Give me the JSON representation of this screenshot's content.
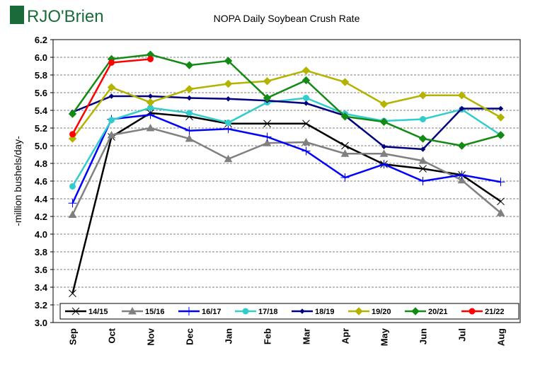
{
  "logo": "RJO'Brien",
  "chart_data": {
    "type": "line",
    "title": "NOPA Daily Soybean Crush Rate",
    "y_label": "-million bushels/day-",
    "categories": [
      "Sep",
      "Oct",
      "Nov",
      "Dec",
      "Jan",
      "Feb",
      "Mar",
      "Apr",
      "May",
      "Jun",
      "Jul",
      "Aug"
    ],
    "ylim": [
      3.0,
      6.2
    ],
    "yticks": [
      {
        "value": 3.0,
        "label": "3.0"
      },
      3.2,
      3.4,
      3.6,
      3.8,
      {
        "value": 4.0,
        "label": "4.0"
      },
      4.2,
      4.4,
      4.6,
      4.8,
      {
        "value": 5.0,
        "label": "5.0"
      },
      5.2,
      5.4,
      5.6,
      5.8,
      {
        "value": 6.0,
        "label": "6.0"
      },
      6.2
    ],
    "grid": true,
    "legend": "bottom",
    "series": [
      {
        "name": "14/15",
        "color": "#000000",
        "marker": "x",
        "values": [
          3.33,
          5.1,
          5.37,
          5.33,
          5.25,
          5.25,
          5.25,
          5.0,
          4.79,
          4.74,
          4.67,
          4.37
        ]
      },
      {
        "name": "15/16",
        "color": "#808080",
        "marker": "triangle",
        "values": [
          4.22,
          5.12,
          5.2,
          5.08,
          4.85,
          5.03,
          5.04,
          4.91,
          4.91,
          4.83,
          4.61,
          4.24
        ]
      },
      {
        "name": "16/17",
        "color": "#0000ff",
        "marker": "plus",
        "values": [
          4.35,
          5.3,
          5.35,
          5.17,
          5.19,
          5.1,
          4.94,
          4.64,
          4.79,
          4.6,
          4.67,
          4.59
        ]
      },
      {
        "name": "17/18",
        "color": "#33cccc",
        "marker": "circle",
        "values": [
          4.54,
          5.29,
          5.43,
          5.37,
          5.26,
          5.49,
          5.54,
          5.36,
          5.28,
          5.3,
          5.41,
          5.12
        ]
      },
      {
        "name": "18/19",
        "color": "#000080",
        "marker": "small-diamond",
        "values": [
          5.38,
          5.56,
          5.56,
          5.54,
          5.53,
          5.51,
          5.48,
          5.34,
          4.99,
          4.96,
          5.42,
          5.42
        ]
      },
      {
        "name": "19/20",
        "color": "#b3b300",
        "marker": "diamond",
        "values": [
          5.08,
          5.66,
          5.49,
          5.64,
          5.7,
          5.73,
          5.85,
          5.72,
          5.47,
          5.57,
          5.57,
          5.32
        ]
      },
      {
        "name": "20/21",
        "color": "#138a13",
        "marker": "diamond",
        "values": [
          5.36,
          5.98,
          6.03,
          5.91,
          5.96,
          5.54,
          5.74,
          5.33,
          5.27,
          5.08,
          5.0,
          5.12
        ]
      },
      {
        "name": "21/22",
        "color": "#ff0000",
        "marker": "circle",
        "values": [
          5.13,
          5.94,
          5.98,
          null,
          null,
          null,
          null,
          null,
          null,
          null,
          null,
          null
        ]
      }
    ]
  }
}
